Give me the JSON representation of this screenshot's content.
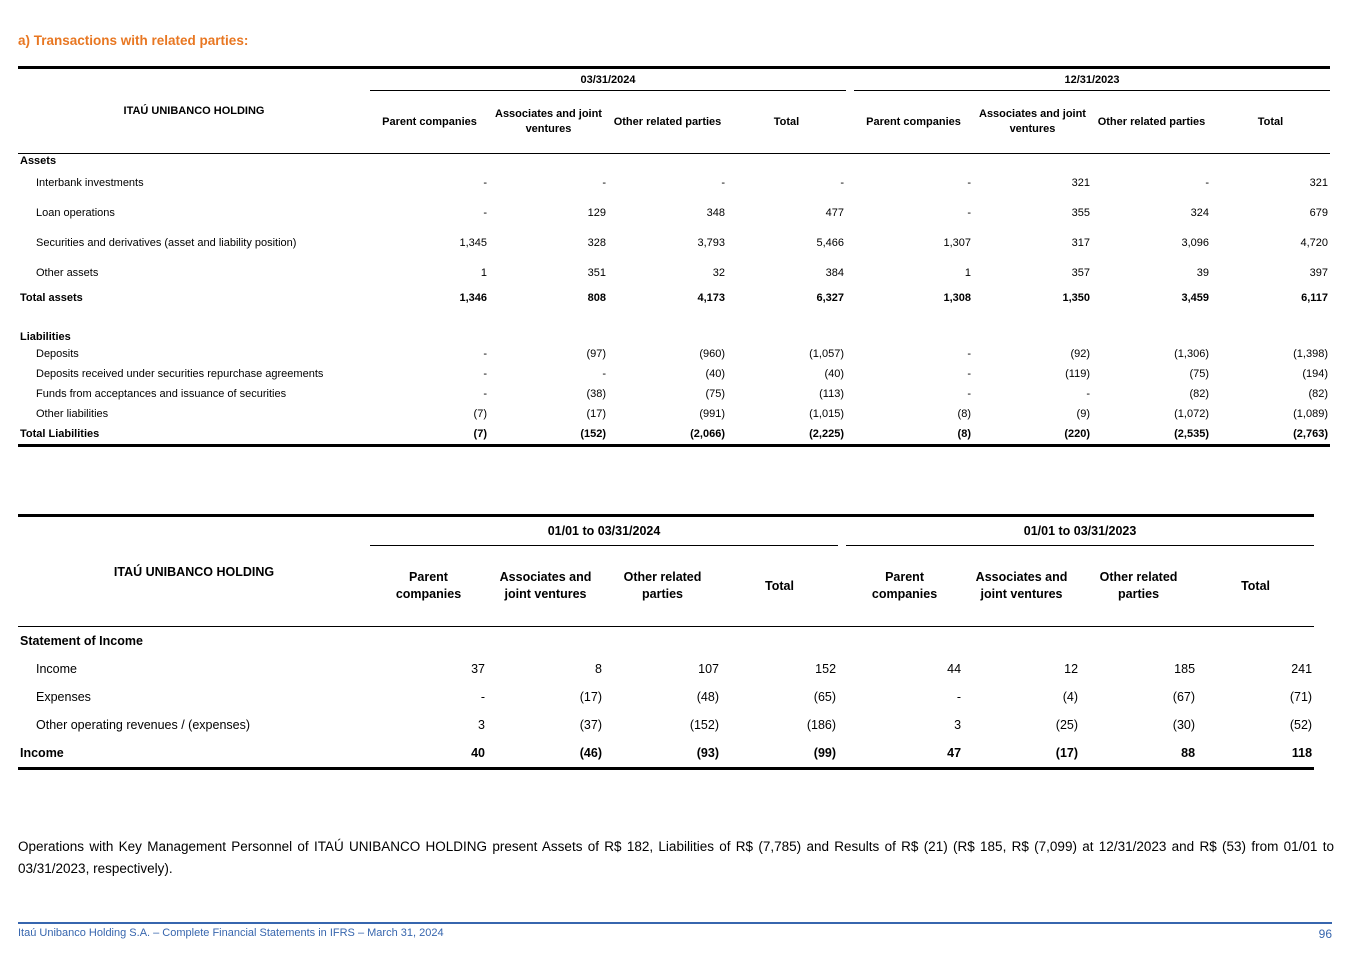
{
  "page": {
    "title": "a) Transactions with related parties:",
    "note": "Operations with Key Management Personnel of ITAÚ UNIBANCO HOLDING present Assets of R$ 182, Liabilities of R$ (7,785) and Results of R$ (21) (R$ 185, R$ (7,099) at 12/31/2023 and R$ (53) from 01/01 to 03/31/2023, respectively).",
    "footer": {
      "left": "Itaú Unibanco Holding S.A. – Complete Financial Statements in IFRS – March 31, 2024",
      "page_number": "96"
    },
    "colors": {
      "accent_orange": "#E87722",
      "footer_blue": "#3766AE"
    }
  },
  "balance_table": {
    "row_header": "ITAÚ UNIBANCO HOLDING",
    "groups": [
      {
        "label": "03/31/2024",
        "columns": [
          "Parent companies",
          "Associates and joint ventures",
          "Other related parties",
          "Total"
        ]
      },
      {
        "label": "12/31/2023",
        "columns": [
          "Parent companies",
          "Associates and joint ventures",
          "Other related parties",
          "Total"
        ]
      }
    ],
    "rows": [
      {
        "type": "section",
        "label": "Assets",
        "values": []
      },
      {
        "type": "item",
        "label": "Interbank investments",
        "values": [
          "-",
          "-",
          "-",
          "-",
          "-",
          "321",
          "-",
          "321"
        ]
      },
      {
        "type": "item",
        "label": "Loan operations",
        "values": [
          "-",
          "129",
          "348",
          "477",
          "-",
          "355",
          "324",
          "679"
        ]
      },
      {
        "type": "item",
        "label": "Securities and derivatives (asset and liability position)",
        "values": [
          "1,345",
          "328",
          "3,793",
          "5,466",
          "1,307",
          "317",
          "3,096",
          "4,720"
        ]
      },
      {
        "type": "item",
        "label": "Other assets",
        "values": [
          "1",
          "351",
          "32",
          "384",
          "1",
          "357",
          "39",
          "397"
        ]
      },
      {
        "type": "total",
        "label": "Total assets",
        "values": [
          "1,346",
          "808",
          "4,173",
          "6,327",
          "1,308",
          "1,350",
          "3,459",
          "6,117"
        ]
      },
      {
        "type": "spacer",
        "label": "",
        "values": []
      },
      {
        "type": "section",
        "label": "Liabilities",
        "values": []
      },
      {
        "type": "item",
        "label": "Deposits",
        "values": [
          "-",
          "(97)",
          "(960)",
          "(1,057)",
          "-",
          "(92)",
          "(1,306)",
          "(1,398)"
        ]
      },
      {
        "type": "item",
        "label": "Deposits received under securities repurchase agreements",
        "values": [
          "-",
          "-",
          "(40)",
          "(40)",
          "-",
          "(119)",
          "(75)",
          "(194)"
        ]
      },
      {
        "type": "item",
        "label": "Funds from acceptances and issuance of securities",
        "values": [
          "-",
          "(38)",
          "(75)",
          "(113)",
          "-",
          "-",
          "(82)",
          "(82)"
        ]
      },
      {
        "type": "item",
        "label": "Other liabilities",
        "values": [
          "(7)",
          "(17)",
          "(991)",
          "(1,015)",
          "(8)",
          "(9)",
          "(1,072)",
          "(1,089)"
        ]
      },
      {
        "type": "total",
        "label": "Total Liabilities",
        "values": [
          "(7)",
          "(152)",
          "(2,066)",
          "(2,225)",
          "(8)",
          "(220)",
          "(2,535)",
          "(2,763)"
        ]
      }
    ]
  },
  "income_table": {
    "row_header": "ITAÚ UNIBANCO HOLDING",
    "groups": [
      {
        "label": "01/01 to 03/31/2024",
        "columns": [
          "Parent companies",
          "Associates and joint ventures",
          "Other related parties",
          "Total"
        ]
      },
      {
        "label": "01/01 to 03/31/2023",
        "columns": [
          "Parent companies",
          "Associates and joint ventures",
          "Other related parties",
          "Total"
        ]
      }
    ],
    "rows": [
      {
        "type": "section",
        "label": "Statement of Income",
        "values": []
      },
      {
        "type": "item",
        "label": "Income",
        "values": [
          "37",
          "8",
          "107",
          "152",
          "44",
          "12",
          "185",
          "241"
        ]
      },
      {
        "type": "item",
        "label": "Expenses",
        "values": [
          "-",
          "(17)",
          "(48)",
          "(65)",
          "-",
          "(4)",
          "(67)",
          "(71)"
        ]
      },
      {
        "type": "item",
        "label": "Other operating revenues / (expenses)",
        "values": [
          "3",
          "(37)",
          "(152)",
          "(186)",
          "3",
          "(25)",
          "(30)",
          "(52)"
        ]
      },
      {
        "type": "total",
        "label": "Income",
        "values": [
          "40",
          "(46)",
          "(93)",
          "(99)",
          "47",
          "(17)",
          "88",
          "118"
        ]
      }
    ]
  }
}
